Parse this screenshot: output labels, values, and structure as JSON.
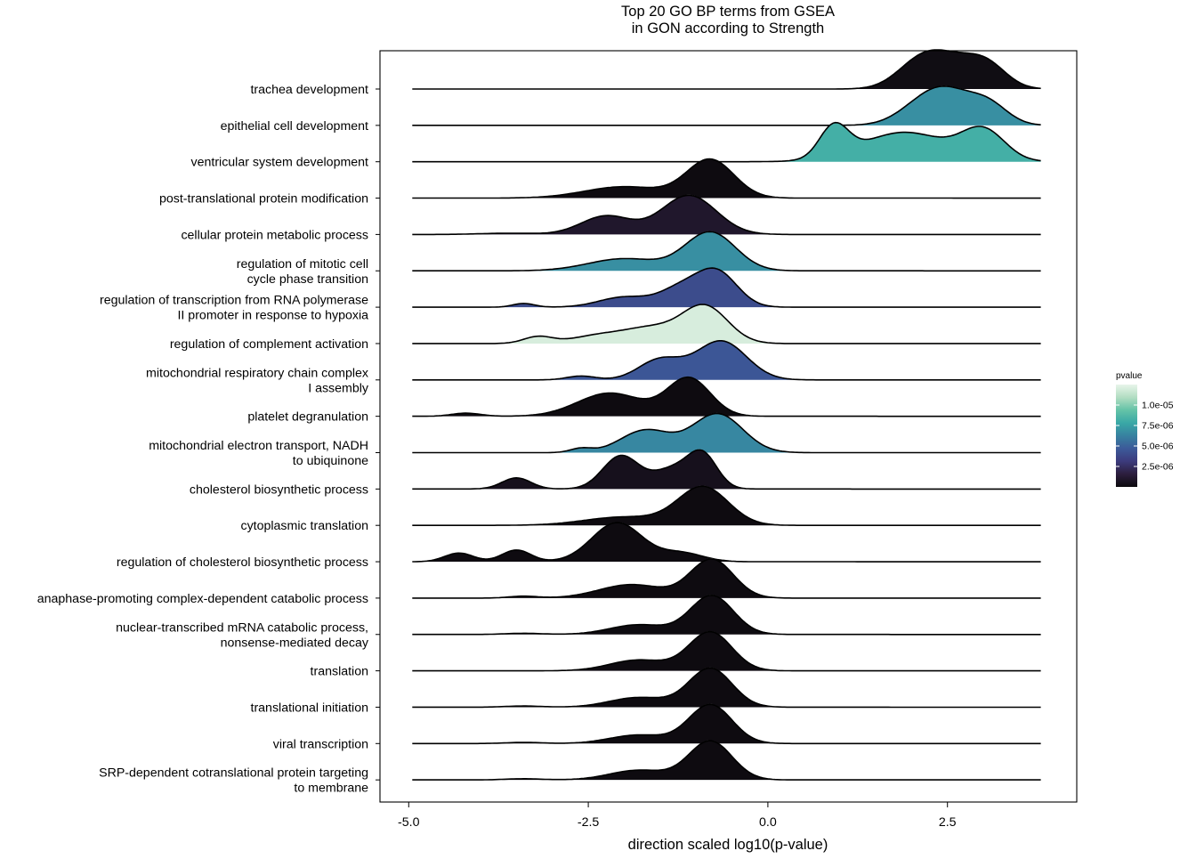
{
  "chart_data": {
    "type": "ridgeline",
    "title_line1": "Top 20 GO BP terms from GSEA",
    "title_line2": "in GON according to Strength",
    "xlabel": "direction scaled log10(p-value)",
    "ylabel": "",
    "xlim": [
      -5.4,
      4.3
    ],
    "xticks": [
      -5.0,
      -2.5,
      0.0,
      2.5
    ],
    "xtick_labels": [
      "-5.0",
      "-2.5",
      "0.0",
      "2.5"
    ],
    "grid": false,
    "legend": {
      "title": "pvalue",
      "position": "right",
      "range": [
        0,
        1.25e-05
      ],
      "breaks": [
        1e-05,
        7.5e-06,
        5e-06,
        2.5e-06
      ],
      "break_labels": [
        "1.0e-05",
        "7.5e-06",
        "5.0e-06",
        "2.5e-06"
      ],
      "colors": [
        "#0c0a0d",
        "#2c1e3d",
        "#3c3a7c",
        "#3c5a99",
        "#3781a0",
        "#39a8a6",
        "#64c3a7",
        "#b2ddc2",
        "#e8f5ea"
      ]
    },
    "series": [
      {
        "label": "trachea development",
        "pvalue": 2e-07,
        "xmin": -4.95,
        "xmax": 3.8,
        "peaks": [
          [
            2.1,
            0.32,
            0.95
          ],
          [
            2.55,
            0.35,
            1.0
          ],
          [
            3.05,
            0.28,
            0.88
          ]
        ]
      },
      {
        "label": "epithelial cell development",
        "pvalue": 6.8e-06,
        "xmin": -4.95,
        "xmax": 3.8,
        "peaks": [
          [
            2.2,
            0.35,
            0.96
          ],
          [
            2.55,
            0.3,
            0.8
          ],
          [
            3.05,
            0.28,
            0.9
          ]
        ]
      },
      {
        "label": "ventricular system development",
        "pvalue": 8.2e-06,
        "xmin": -4.95,
        "xmax": 3.8,
        "peaks": [
          [
            0.92,
            0.2,
            0.55
          ],
          [
            1.9,
            0.6,
            0.52
          ],
          [
            3.0,
            0.3,
            0.52
          ]
        ]
      },
      {
        "label": "post-translational protein modification",
        "pvalue": 1e-07,
        "xmin": -4.95,
        "xmax": 3.8,
        "peaks": [
          [
            -2.0,
            0.55,
            0.3
          ],
          [
            -0.8,
            0.33,
            1.0
          ]
        ]
      },
      {
        "label": "cellular protein metabolic process",
        "pvalue": 1e-06,
        "xmin": -4.95,
        "xmax": 3.8,
        "peaks": [
          [
            -3.6,
            0.4,
            0.03
          ],
          [
            -2.25,
            0.35,
            0.45
          ],
          [
            -1.1,
            0.38,
            0.95
          ]
        ]
      },
      {
        "label": "regulation of mitotic cell\ncycle phase transition",
        "pvalue": 6.8e-06,
        "xmin": -4.95,
        "xmax": 3.8,
        "peaks": [
          [
            -2.0,
            0.5,
            0.3
          ],
          [
            -0.8,
            0.35,
            0.95
          ]
        ]
      },
      {
        "label": "regulation of transcription from RNA polymerase\nII promoter in response to hypoxia",
        "pvalue": 4e-06,
        "xmin": -4.95,
        "xmax": 3.8,
        "peaks": [
          [
            -3.4,
            0.15,
            0.1
          ],
          [
            -2.0,
            0.35,
            0.27
          ],
          [
            -1.2,
            0.3,
            0.5
          ],
          [
            -0.7,
            0.28,
            0.9
          ]
        ]
      },
      {
        "label": "regulation of complement activation",
        "pvalue": 1.2e-05,
        "xmin": -4.95,
        "xmax": 3.8,
        "peaks": [
          [
            -3.2,
            0.2,
            0.17
          ],
          [
            -2.3,
            0.4,
            0.22
          ],
          [
            -1.6,
            0.35,
            0.35
          ],
          [
            -0.88,
            0.32,
            0.95
          ]
        ]
      },
      {
        "label": "mitochondrial respiratory chain complex\nI assembly",
        "pvalue": 4.5e-06,
        "xmin": -4.95,
        "xmax": 3.8,
        "peaks": [
          [
            -2.6,
            0.2,
            0.1
          ],
          [
            -1.5,
            0.3,
            0.52
          ],
          [
            -0.65,
            0.35,
            1.0
          ]
        ]
      },
      {
        "label": "platelet degranulation",
        "pvalue": 1e-07,
        "xmin": -4.95,
        "xmax": 3.8,
        "peaks": [
          [
            -4.2,
            0.2,
            0.07
          ],
          [
            -2.2,
            0.45,
            0.52
          ],
          [
            -1.1,
            0.3,
            0.85
          ]
        ]
      },
      {
        "label": "mitochondrial electron transport, NADH\nto ubiquinone",
        "pvalue": 6.5e-06,
        "xmin": -4.95,
        "xmax": 3.8,
        "peaks": [
          [
            -2.6,
            0.15,
            0.1
          ],
          [
            -1.7,
            0.35,
            0.55
          ],
          [
            -0.7,
            0.35,
            0.95
          ]
        ]
      },
      {
        "label": "cholesterol biosynthetic process",
        "pvalue": 5e-07,
        "xmin": -4.95,
        "xmax": 3.8,
        "peaks": [
          [
            -3.5,
            0.2,
            0.3
          ],
          [
            -2.05,
            0.25,
            0.88
          ],
          [
            -1.3,
            0.3,
            0.55
          ],
          [
            -0.9,
            0.2,
            0.8
          ]
        ]
      },
      {
        "label": "cytoplasmic translation",
        "pvalue": 1e-07,
        "xmin": -4.95,
        "xmax": 3.8,
        "peaks": [
          [
            -2.0,
            0.55,
            0.22
          ],
          [
            -0.9,
            0.35,
            1.0
          ]
        ]
      },
      {
        "label": "regulation of cholesterol biosynthetic process",
        "pvalue": 1e-07,
        "xmin": -4.95,
        "xmax": 3.8,
        "peaks": [
          [
            -4.3,
            0.2,
            0.2
          ],
          [
            -3.5,
            0.2,
            0.27
          ],
          [
            -2.1,
            0.35,
            0.9
          ],
          [
            -1.2,
            0.3,
            0.2
          ]
        ]
      },
      {
        "label": "anaphase-promoting complex-dependent catabolic process",
        "pvalue": 1e-07,
        "xmin": -4.95,
        "xmax": 3.8,
        "peaks": [
          [
            -3.4,
            0.2,
            0.05
          ],
          [
            -1.9,
            0.45,
            0.35
          ],
          [
            -0.78,
            0.3,
            1.0
          ]
        ]
      },
      {
        "label": "nuclear-transcribed mRNA catabolic process,\nnonsense-mediated decay",
        "pvalue": 1e-07,
        "xmin": -4.95,
        "xmax": 3.8,
        "peaks": [
          [
            -3.4,
            0.25,
            0.03
          ],
          [
            -1.8,
            0.4,
            0.25
          ],
          [
            -0.78,
            0.3,
            1.0
          ]
        ]
      },
      {
        "label": "translation",
        "pvalue": 1e-07,
        "xmin": -4.95,
        "xmax": 3.8,
        "peaks": [
          [
            -1.8,
            0.4,
            0.28
          ],
          [
            -0.8,
            0.3,
            1.0
          ]
        ]
      },
      {
        "label": "translational initiation",
        "pvalue": 1e-07,
        "xmin": -4.95,
        "xmax": 3.8,
        "peaks": [
          [
            -3.4,
            0.25,
            0.03
          ],
          [
            -1.8,
            0.4,
            0.25
          ],
          [
            -0.8,
            0.3,
            1.0
          ]
        ]
      },
      {
        "label": "viral transcription",
        "pvalue": 1e-07,
        "xmin": -4.95,
        "xmax": 3.8,
        "peaks": [
          [
            -3.4,
            0.25,
            0.03
          ],
          [
            -1.8,
            0.4,
            0.22
          ],
          [
            -0.8,
            0.3,
            1.0
          ]
        ]
      },
      {
        "label": "SRP-dependent cotranslational protein targeting\nto membrane",
        "pvalue": 1e-07,
        "xmin": -4.95,
        "xmax": 3.8,
        "peaks": [
          [
            -3.4,
            0.25,
            0.03
          ],
          [
            -1.8,
            0.4,
            0.25
          ],
          [
            -0.8,
            0.3,
            1.0
          ]
        ]
      }
    ]
  }
}
